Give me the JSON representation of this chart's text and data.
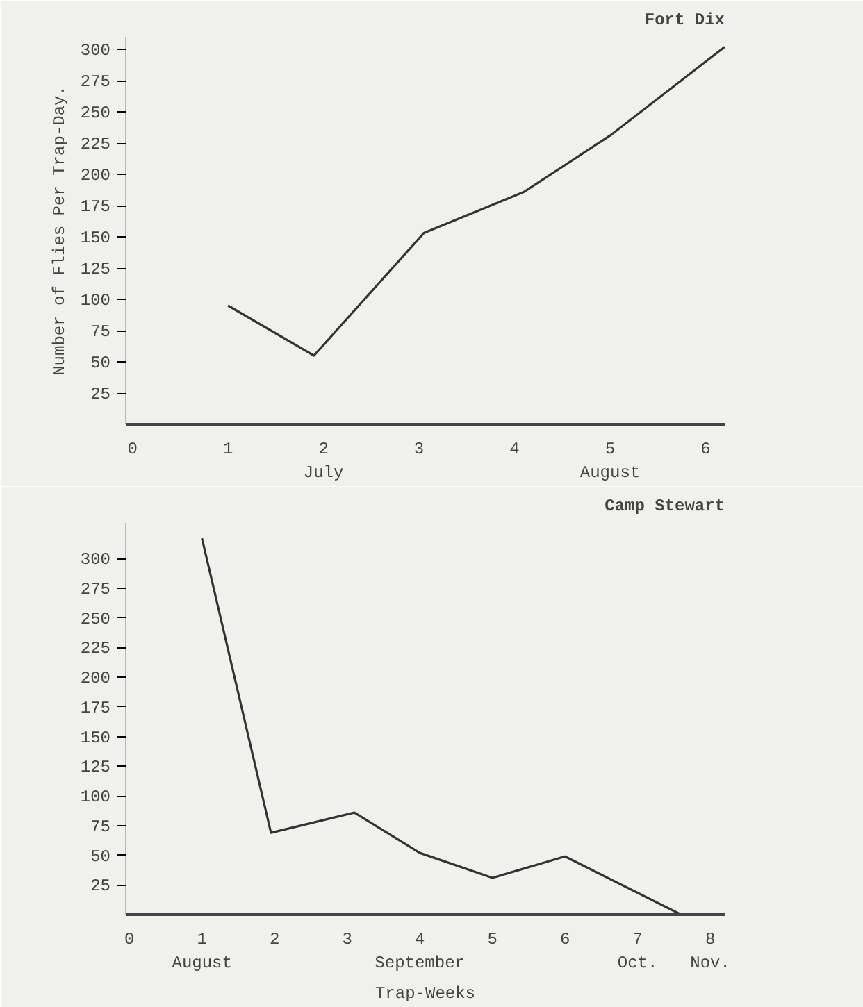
{
  "chart_data": [
    {
      "type": "line",
      "title": "Fort Dix",
      "ylabel": "Number of Flies Per Trap-Day.",
      "x": [
        1,
        1.9,
        3.05,
        4.1,
        5,
        6.2
      ],
      "series": [
        {
          "color": "#333333",
          "values": [
            95,
            55,
            153,
            186,
            231,
            302
          ]
        }
      ],
      "xlim": [
        -0.07,
        6.2
      ],
      "xticks": [
        0,
        1,
        {
          "value": 2,
          "label": "2\nJuly"
        },
        3,
        4,
        {
          "value": 5,
          "label": "5\nAugust"
        },
        6
      ],
      "ylim": [
        0,
        310
      ],
      "yticks": [
        25,
        50,
        75,
        100,
        125,
        150,
        175,
        200,
        225,
        250,
        275,
        300
      ],
      "grid": false,
      "marker": "none",
      "line_style": "solid"
    },
    {
      "type": "line",
      "title": "Camp Stewart",
      "xlabel": "Trap-Weeks",
      "x": [
        1,
        1.95,
        3.1,
        4,
        5,
        6,
        7.6
      ],
      "series": [
        {
          "color": "#333333",
          "values": [
            317,
            69,
            86,
            52,
            31,
            49,
            0
          ]
        }
      ],
      "xlim": [
        -0.05,
        8.2
      ],
      "xticks": [
        0,
        {
          "value": 1,
          "label": "1\nAugust"
        },
        2,
        3,
        {
          "value": 4,
          "label": "4\nSeptember"
        },
        5,
        6,
        {
          "value": 7,
          "label": "7\nOct."
        },
        {
          "value": 8,
          "label": "8\nNov."
        }
      ],
      "ylim": [
        0,
        330
      ],
      "yticks": [
        25,
        50,
        75,
        100,
        125,
        150,
        175,
        200,
        225,
        250,
        275,
        300
      ],
      "grid": false,
      "marker": "none",
      "line_style": "solid"
    }
  ]
}
